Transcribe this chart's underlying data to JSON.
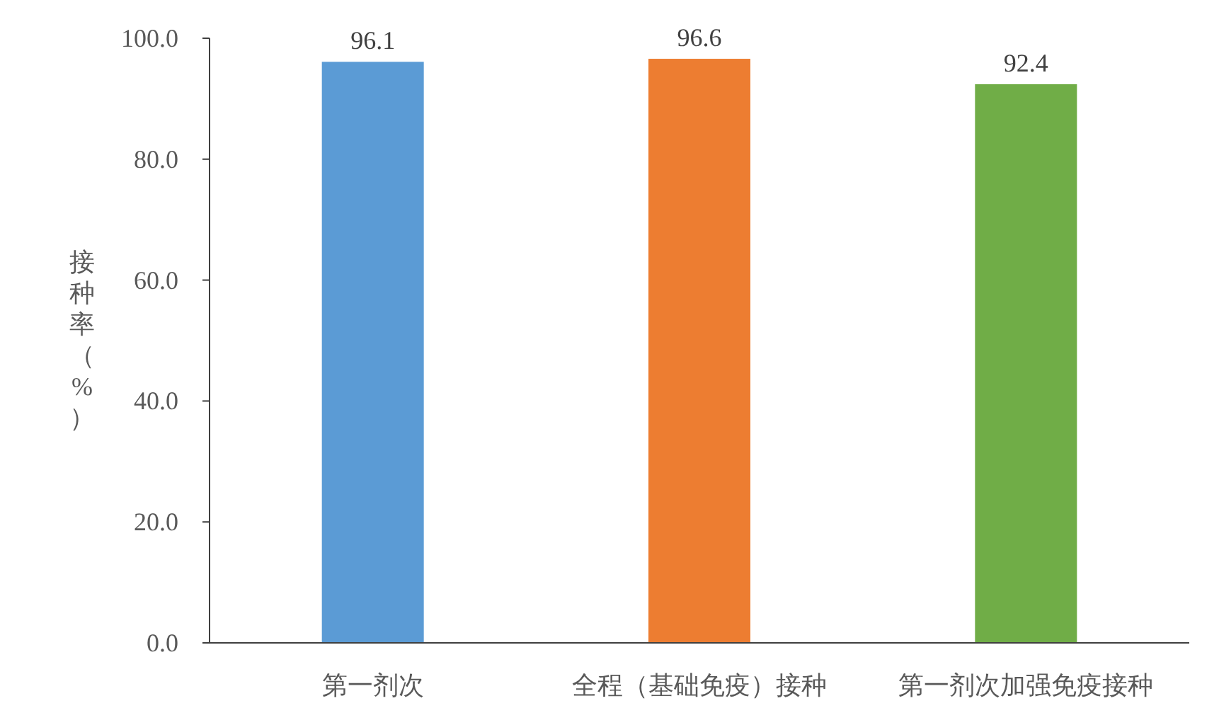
{
  "chart_data": {
    "type": "bar",
    "ylabel": "接种率（%）",
    "categories": [
      "第一剂次",
      "全程（基础免疫）接种",
      "第一剂次加强免疫接种"
    ],
    "values": [
      96.1,
      96.6,
      92.4
    ],
    "colors": [
      "#5b9bd5",
      "#ed7d31",
      "#70ad47"
    ],
    "ylim": [
      0,
      100
    ],
    "yticks": [
      {
        "value": 0,
        "label": "0.0"
      },
      {
        "value": 20,
        "label": "20.0"
      },
      {
        "value": 40,
        "label": "40.0"
      },
      {
        "value": 60,
        "label": "60.0"
      },
      {
        "value": 80,
        "label": "80.0"
      },
      {
        "value": 100,
        "label": "100.0"
      }
    ],
    "data_labels": true,
    "grid": false
  }
}
